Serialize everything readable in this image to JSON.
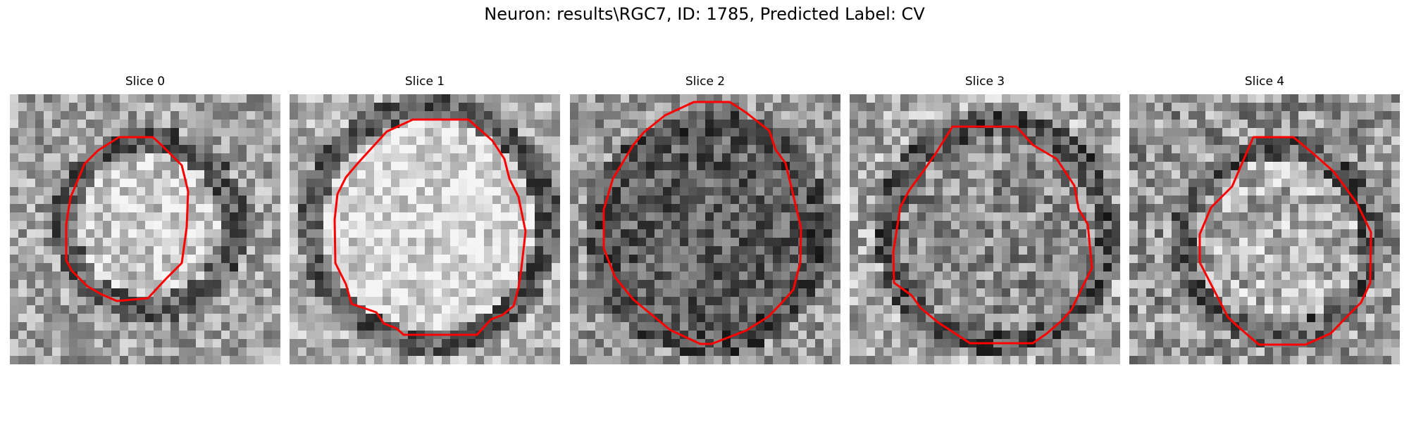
{
  "figure": {
    "title": "Neuron: results\\RGC7, ID: 1785, Predicted Label: CV"
  },
  "panels": [
    {
      "label": "Slice 0",
      "overlay_color": "#ff0000"
    },
    {
      "label": "Slice 1",
      "overlay_color": "#ff0000"
    },
    {
      "label": "Slice 2",
      "overlay_color": "#ff0000"
    },
    {
      "label": "Slice 3",
      "overlay_color": "#ff0000"
    },
    {
      "label": "Slice 4",
      "overlay_color": "#ff0000"
    }
  ]
}
